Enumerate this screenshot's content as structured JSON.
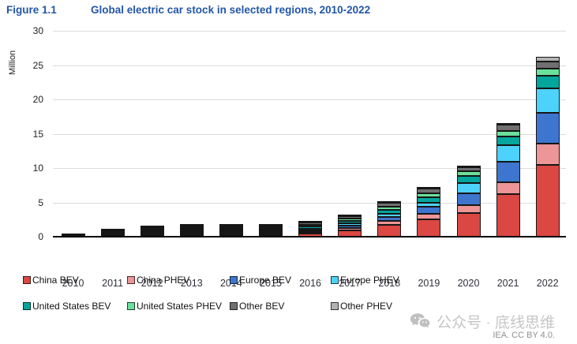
{
  "title": {
    "label": "Figure 1.1",
    "text": "Global electric car stock in selected regions, 2010-2022"
  },
  "chart_data": {
    "type": "bar",
    "stacked": true,
    "title": "Global electric car stock in selected regions, 2010-2022",
    "xlabel": "",
    "ylabel": "Million",
    "ylim": [
      0,
      30
    ],
    "yticks": [
      0,
      5,
      10,
      15,
      20,
      25,
      30
    ],
    "grid": true,
    "legend_position": "bottom",
    "categories": [
      "2010",
      "2011",
      "2012",
      "2013",
      "2014",
      "2015",
      "2016",
      "2017",
      "2018",
      "2019",
      "2020",
      "2021",
      "2022"
    ],
    "series": [
      {
        "name": "China BEV",
        "color": "#DB4742",
        "values": [
          0.01,
          0.01,
          0.02,
          0.03,
          0.08,
          0.23,
          0.48,
          0.95,
          1.75,
          2.58,
          3.5,
          6.2,
          10.5
        ]
      },
      {
        "name": "China PHEV",
        "color": "#EE9597",
        "values": [
          0.0,
          0.0,
          0.0,
          0.01,
          0.03,
          0.08,
          0.17,
          0.28,
          0.53,
          0.77,
          1.1,
          1.7,
          3.1
        ]
      },
      {
        "name": "Europe BEV",
        "color": "#3E75CE",
        "values": [
          0.0,
          0.01,
          0.03,
          0.06,
          0.12,
          0.19,
          0.26,
          0.37,
          0.57,
          0.97,
          1.75,
          3.05,
          4.5
        ]
      },
      {
        "name": "Europe PHEV",
        "color": "#4DD2FC",
        "values": [
          0.0,
          0.0,
          0.01,
          0.03,
          0.08,
          0.15,
          0.23,
          0.33,
          0.46,
          0.61,
          1.45,
          2.4,
          3.5
        ]
      },
      {
        "name": "United States BEV",
        "color": "#03A69C",
        "values": [
          0.0,
          0.01,
          0.03,
          0.08,
          0.14,
          0.21,
          0.3,
          0.4,
          0.64,
          0.88,
          1.1,
          1.3,
          1.9
        ]
      },
      {
        "name": "United States PHEV",
        "color": "#6BE09B",
        "values": [
          0.0,
          0.01,
          0.04,
          0.09,
          0.15,
          0.19,
          0.26,
          0.36,
          0.47,
          0.57,
          0.65,
          0.8,
          0.95
        ]
      },
      {
        "name": "Other BEV",
        "color": "#6F6F6F",
        "values": [
          0.01,
          0.02,
          0.05,
          0.08,
          0.09,
          0.15,
          0.26,
          0.35,
          0.55,
          0.68,
          0.6,
          0.85,
          1.1
        ]
      },
      {
        "name": "Other PHEV",
        "color": "#B3B3B3",
        "values": [
          0.0,
          0.0,
          0.01,
          0.01,
          0.02,
          0.03,
          0.05,
          0.07,
          0.1,
          0.12,
          0.15,
          0.25,
          0.65
        ]
      }
    ]
  },
  "watermark": {
    "text": "公众号 · 底线思维",
    "icon": "wechat-icon"
  },
  "attribution": "IEA. CC BY 4.0."
}
